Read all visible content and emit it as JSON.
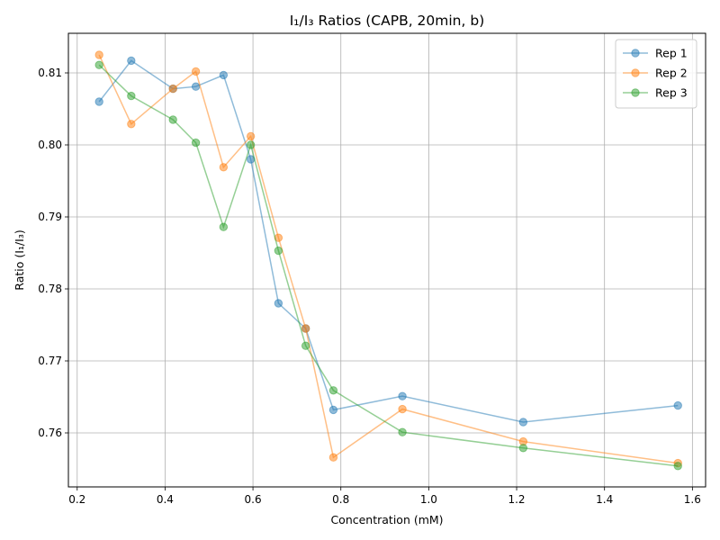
{
  "chart_data": {
    "type": "line",
    "title": "I₁/I₃ Ratios (CAPB, 20min, b)",
    "xlabel": "Concentration (mM)",
    "ylabel": "Ratio (I₁/I₃)",
    "xlim": [
      0.18,
      1.63
    ],
    "ylim": [
      0.7525,
      0.8155
    ],
    "xticks": [
      0.2,
      0.4,
      0.6,
      0.8,
      1.0,
      1.2,
      1.4,
      1.6
    ],
    "xtick_labels": [
      "0.2",
      "0.4",
      "0.6",
      "0.8",
      "1.0",
      "1.2",
      "1.4",
      "1.6"
    ],
    "yticks": [
      0.76,
      0.77,
      0.78,
      0.79,
      0.8,
      0.81
    ],
    "ytick_labels": [
      "0.76",
      "0.77",
      "0.78",
      "0.79",
      "0.80",
      "0.81"
    ],
    "grid": true,
    "legend_position": "top-right",
    "marker": "circle",
    "x": [
      0.25,
      0.323,
      0.418,
      0.47,
      0.533,
      0.595,
      0.658,
      0.72,
      0.783,
      0.94,
      1.215,
      1.567
    ],
    "series": [
      {
        "name": "Rep 1",
        "color": "#1f77b4",
        "values": [
          0.806,
          0.8117,
          0.8078,
          0.8081,
          0.8097,
          0.798,
          0.778,
          0.7745,
          0.7632,
          0.7651,
          0.7615,
          0.7638
        ]
      },
      {
        "name": "Rep 2",
        "color": "#ff7f0e",
        "values": [
          0.8125,
          0.8029,
          0.8078,
          0.8102,
          0.7969,
          0.8012,
          0.7871,
          0.7745,
          0.7566,
          0.7633,
          0.7588,
          0.7558
        ]
      },
      {
        "name": "Rep 3",
        "color": "#2ca02c",
        "values": [
          0.8111,
          0.8068,
          0.8035,
          0.8003,
          0.7886,
          0.8,
          0.7853,
          0.7721,
          0.7659,
          0.7601,
          0.7579,
          0.7554
        ]
      }
    ]
  }
}
